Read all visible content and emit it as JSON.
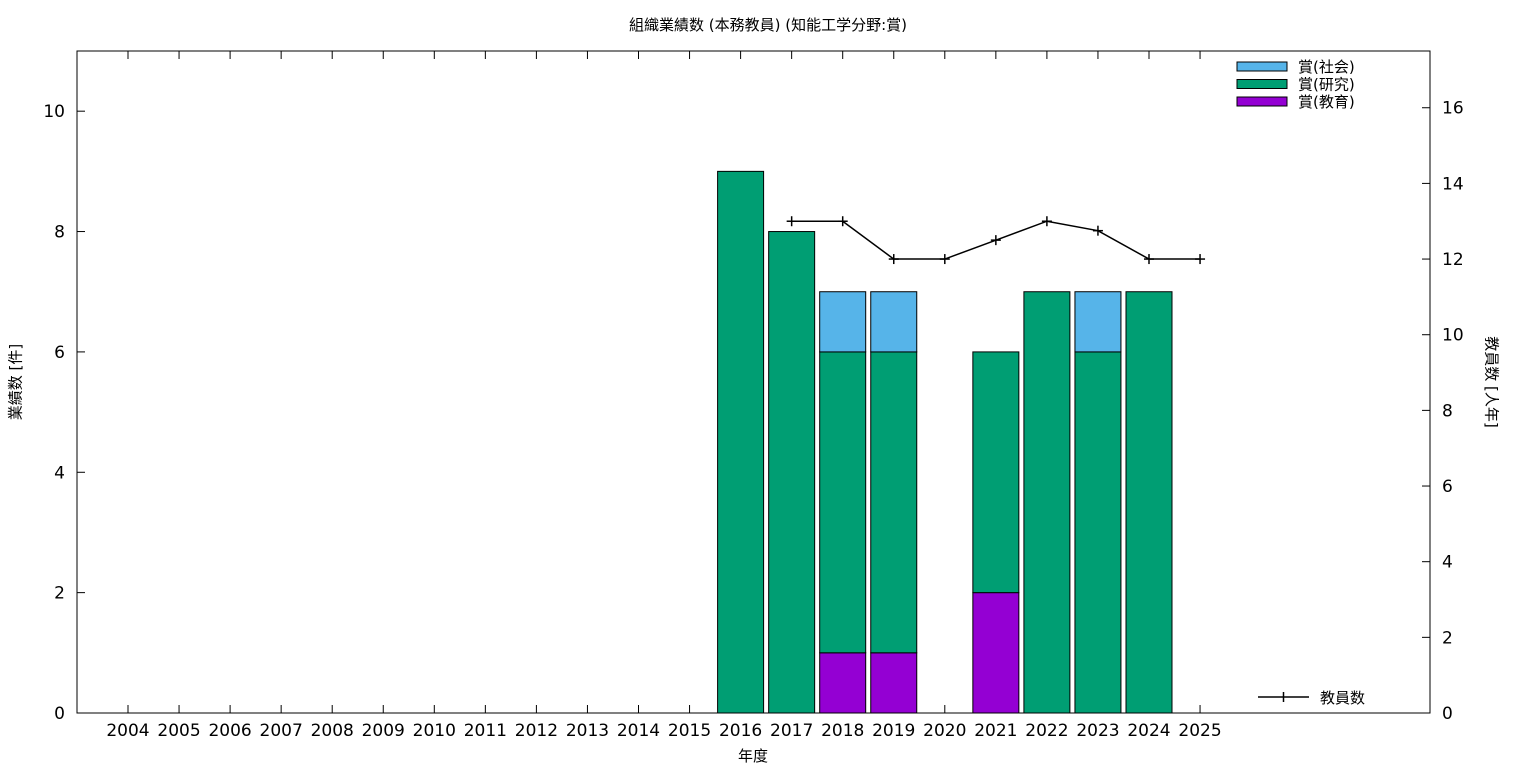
{
  "chart_data": {
    "type": "bar",
    "title": "組織業績数 (本務教員) (知能工学分野:賞)",
    "xlabel": "年度",
    "ylabel": "業績数 [件]",
    "y2label": "教員数 [人年]",
    "ylim": [
      0,
      11
    ],
    "y2lim": [
      0,
      17.5
    ],
    "yticks": [
      0,
      2,
      4,
      6,
      8,
      10
    ],
    "y2ticks": [
      0,
      2,
      4,
      6,
      8,
      10,
      12,
      14,
      16
    ],
    "categories": [
      "2004",
      "2005",
      "2006",
      "2007",
      "2008",
      "2009",
      "2010",
      "2011",
      "2012",
      "2013",
      "2014",
      "2015",
      "2016",
      "2017",
      "2018",
      "2019",
      "2020",
      "2021",
      "2022",
      "2023",
      "2024",
      "2025"
    ],
    "stacked": true,
    "series": [
      {
        "name": "賞(教育)",
        "color": "#9400d3",
        "values": [
          0,
          0,
          0,
          0,
          0,
          0,
          0,
          0,
          0,
          0,
          0,
          0,
          0,
          0,
          1,
          1,
          0,
          2,
          0,
          0,
          0,
          0
        ]
      },
      {
        "name": "賞(研究)",
        "color": "#009e73",
        "values": [
          0,
          0,
          0,
          0,
          0,
          0,
          0,
          0,
          0,
          0,
          0,
          0,
          9,
          8,
          5,
          5,
          0,
          4,
          7,
          6,
          7,
          0
        ]
      },
      {
        "name": "賞(社会)",
        "color": "#56b4e9",
        "values": [
          0,
          0,
          0,
          0,
          0,
          0,
          0,
          0,
          0,
          0,
          0,
          0,
          0,
          0,
          1,
          1,
          0,
          0,
          0,
          1,
          0,
          0
        ]
      }
    ],
    "line_series": {
      "name": "教員数",
      "axis": "right",
      "color": "#000000",
      "x": [
        "2017",
        "2018",
        "2019",
        "2020",
        "2021",
        "2022",
        "2023",
        "2024",
        "2025"
      ],
      "values": [
        13,
        13,
        12,
        12,
        12.5,
        13,
        12.75,
        12,
        12
      ]
    },
    "legend_placement": "top-right",
    "grid": false
  }
}
